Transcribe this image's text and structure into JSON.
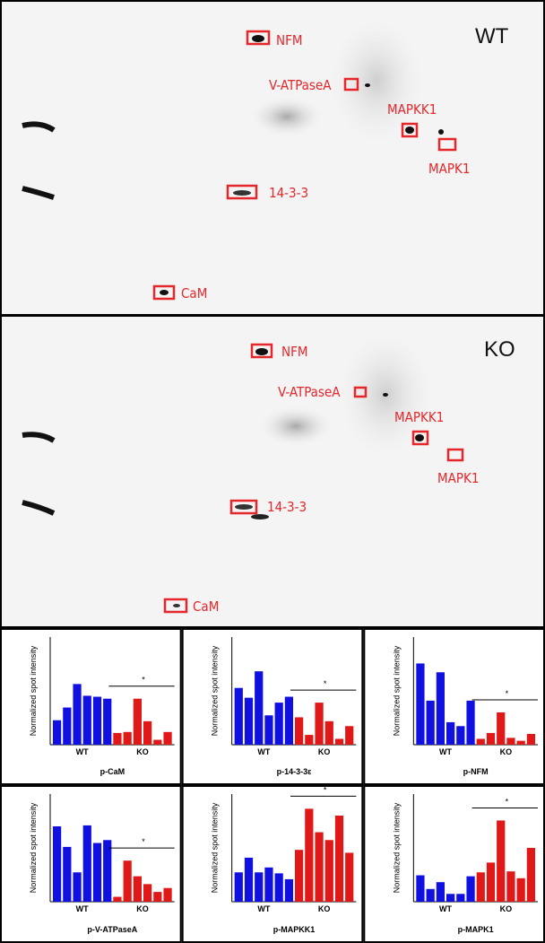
{
  "gels": [
    {
      "title": "WT",
      "labels": [
        "NFM",
        "V-ATPaseA",
        "MAPKK1",
        "MAPK1",
        "14-3-3",
        "CaM"
      ]
    },
    {
      "title": "KO",
      "labels": [
        "NFM",
        "V-ATPaseA",
        "MAPKK1",
        "MAPK1",
        "14-3-3",
        "CaM"
      ]
    }
  ],
  "chart_data": [
    {
      "type": "bar",
      "title": "p-CaM",
      "ylabel": "Normalized spot intensity",
      "annotation": "*",
      "ylim": [
        0,
        110
      ],
      "series": [
        {
          "name": "WT",
          "color": "#1010e0",
          "values": [
            25,
            38,
            62,
            50,
            49,
            47
          ]
        },
        {
          "name": "KO",
          "color": "#e01818",
          "values": [
            12,
            13,
            47,
            24,
            5,
            13
          ]
        }
      ]
    },
    {
      "type": "bar",
      "title": "p-14-3-3ε",
      "ylabel": "Normalized spot intensity",
      "annotation": "*",
      "ylim": [
        0,
        110
      ],
      "series": [
        {
          "name": "WT",
          "color": "#1010e0",
          "values": [
            58,
            48,
            75,
            30,
            43,
            49
          ]
        },
        {
          "name": "KO",
          "color": "#e01818",
          "values": [
            28,
            10,
            43,
            24,
            6,
            19
          ]
        }
      ]
    },
    {
      "type": "bar",
      "title": "p-NFM",
      "ylabel": "Normalized spot intensity",
      "annotation": "*",
      "ylim": [
        0,
        110
      ],
      "series": [
        {
          "name": "WT",
          "color": "#1010e0",
          "values": [
            83,
            45,
            74,
            23,
            19,
            45
          ]
        },
        {
          "name": "KO",
          "color": "#e01818",
          "values": [
            6,
            12,
            33,
            7,
            4,
            11
          ]
        }
      ]
    },
    {
      "type": "bar",
      "title": "p-V-ATPaseA",
      "ylabel": "Normalized spot intensity",
      "annotation": "*",
      "ylim": [
        0,
        110
      ],
      "series": [
        {
          "name": "WT",
          "color": "#1010e0",
          "values": [
            77,
            56,
            30,
            78,
            60,
            63
          ]
        },
        {
          "name": "KO",
          "color": "#e01818",
          "values": [
            5,
            42,
            26,
            18,
            10,
            14
          ]
        }
      ]
    },
    {
      "type": "bar",
      "title": "p-MAPKK1",
      "ylabel": "Normalized spot intensity",
      "annotation": "*",
      "ylim": [
        0,
        110
      ],
      "series": [
        {
          "name": "WT",
          "color": "#1010e0",
          "values": [
            30,
            45,
            30,
            35,
            29,
            23
          ]
        },
        {
          "name": "KO",
          "color": "#e01818",
          "values": [
            53,
            95,
            71,
            63,
            88,
            50
          ]
        }
      ]
    },
    {
      "type": "bar",
      "title": "p-MAPK1",
      "ylabel": "Normalized spot intensity",
      "annotation": "*",
      "ylim": [
        0,
        110
      ],
      "series": [
        {
          "name": "WT",
          "color": "#1010e0",
          "values": [
            27,
            13,
            20,
            8,
            8,
            26
          ]
        },
        {
          "name": "KO",
          "color": "#e01818",
          "values": [
            30,
            40,
            83,
            31,
            24,
            55
          ]
        }
      ]
    }
  ]
}
